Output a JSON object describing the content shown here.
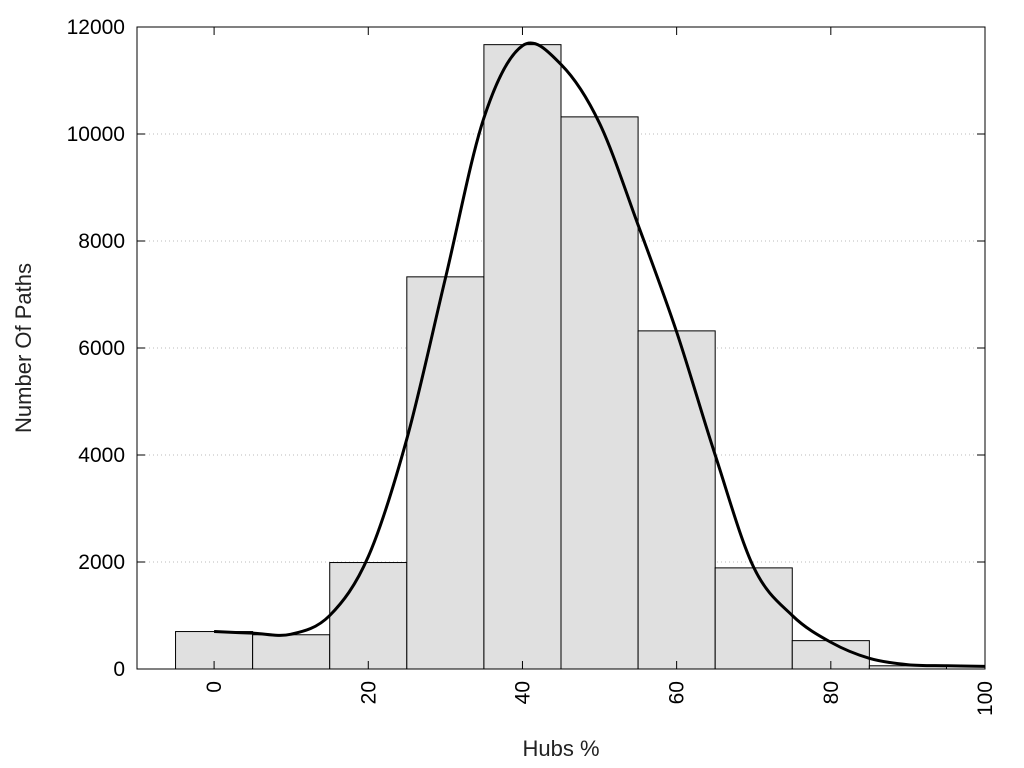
{
  "chart_data": {
    "type": "bar",
    "xlabel": "Hubs %",
    "ylabel": "Number Of Paths",
    "xlim": [
      -10,
      100
    ],
    "ylim": [
      0,
      12000
    ],
    "grid": "horizontal dotted",
    "x_ticks": [
      0,
      20,
      40,
      60,
      80,
      100
    ],
    "y_ticks": [
      0,
      2000,
      4000,
      6000,
      8000,
      10000,
      12000
    ],
    "bin_width": 10,
    "bins": [
      {
        "center": 0,
        "value": 700
      },
      {
        "center": 10,
        "value": 640
      },
      {
        "center": 20,
        "value": 1990
      },
      {
        "center": 30,
        "value": 7330
      },
      {
        "center": 40,
        "value": 11670
      },
      {
        "center": 50,
        "value": 10320
      },
      {
        "center": 60,
        "value": 6320
      },
      {
        "center": 70,
        "value": 1890
      },
      {
        "center": 80,
        "value": 530
      },
      {
        "center": 90,
        "value": 60
      }
    ],
    "curve": {
      "type": "line",
      "points": [
        [
          0,
          700
        ],
        [
          5,
          670
        ],
        [
          10,
          650
        ],
        [
          15,
          1000
        ],
        [
          20,
          2100
        ],
        [
          25,
          4300
        ],
        [
          30,
          7300
        ],
        [
          35,
          10300
        ],
        [
          40,
          11650
        ],
        [
          45,
          11300
        ],
        [
          50,
          10200
        ],
        [
          55,
          8300
        ],
        [
          60,
          6300
        ],
        [
          65,
          4000
        ],
        [
          70,
          1900
        ],
        [
          75,
          1000
        ],
        [
          80,
          500
        ],
        [
          85,
          200
        ],
        [
          90,
          80
        ],
        [
          95,
          60
        ],
        [
          100,
          50
        ]
      ]
    },
    "colors": {
      "bar_fill": "#e0e0e0",
      "bar_stroke": "#000000",
      "curve": "#000000",
      "grid": "#bbbbbb"
    }
  }
}
